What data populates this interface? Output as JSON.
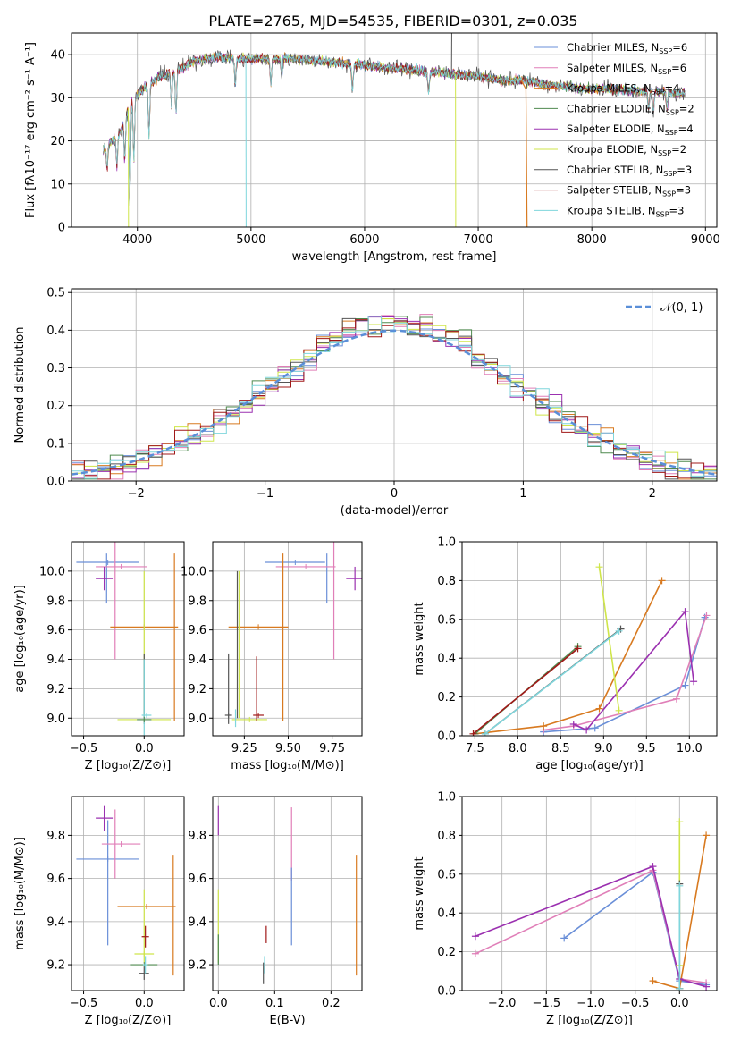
{
  "title": "PLATE=2765, MJD=54535, FIBERID=0301, z=0.035",
  "colors": {
    "c0": "#6a8fd8",
    "c1": "#e07fb8",
    "c2": "#d87a20",
    "c3": "#4f8a4f",
    "c4": "#9b30b0",
    "c5": "#cfe54a",
    "c6": "#555555",
    "c7": "#a01818",
    "c8": "#7fd6dc",
    "normal": "#5a8fd8"
  },
  "chart_data": [
    {
      "id": "spectrum",
      "type": "line",
      "xlabel": "wavelength [Angstrom, rest frame]",
      "ylabel": "Flux [fλ10⁻¹⁷ erg cm⁻² s⁻¹ A⁻¹]",
      "xlim": [
        3420,
        9100
      ],
      "ylim": [
        0,
        45
      ],
      "xticks": [
        "4000",
        "5000",
        "6000",
        "7000",
        "8000",
        "9000"
      ],
      "yticks": [
        "0",
        "10",
        "20",
        "30",
        "40"
      ],
      "legend": [
        {
          "label": "Chabrier MILES, N",
          "sub": "SSP",
          "eq": "=6",
          "color": "c0"
        },
        {
          "label": "Salpeter MILES, N",
          "sub": "SSP",
          "eq": "=6",
          "color": "c1"
        },
        {
          "label": "Kroupa MILES, N",
          "sub": "SSP",
          "eq": "=4",
          "color": "c2"
        },
        {
          "label": "Chabrier ELODIE, N",
          "sub": "SSP",
          "eq": "=2",
          "color": "c3"
        },
        {
          "label": "Salpeter ELODIE, N",
          "sub": "SSP",
          "eq": "=4",
          "color": "c4"
        },
        {
          "label": "Kroupa ELODIE, N",
          "sub": "SSP",
          "eq": "=2",
          "color": "c5"
        },
        {
          "label": "Chabrier STELIB, N",
          "sub": "SSP",
          "eq": "=3",
          "color": "c6"
        },
        {
          "label": "Salpeter STELIB, N",
          "sub": "SSP",
          "eq": "=3",
          "color": "c7"
        },
        {
          "label": "Kroupa STELIB, N",
          "sub": "SSP",
          "eq": "=3",
          "color": "c8"
        }
      ],
      "continuum": [
        [
          3700,
          18
        ],
        [
          3780,
          20
        ],
        [
          3850,
          22
        ],
        [
          3900,
          26
        ],
        [
          3950,
          30
        ],
        [
          4000,
          31
        ],
        [
          4100,
          33
        ],
        [
          4200,
          35
        ],
        [
          4300,
          36
        ],
        [
          4400,
          37
        ],
        [
          4500,
          38.5
        ],
        [
          4700,
          39.5
        ],
        [
          4900,
          39
        ],
        [
          5000,
          39
        ],
        [
          5200,
          39
        ],
        [
          5400,
          39
        ],
        [
          5600,
          38.5
        ],
        [
          5800,
          38
        ],
        [
          6000,
          37.5
        ],
        [
          6200,
          37
        ],
        [
          6400,
          36.5
        ],
        [
          6600,
          36
        ],
        [
          6800,
          35.5
        ],
        [
          7000,
          35
        ],
        [
          7200,
          34
        ],
        [
          7400,
          34
        ],
        [
          7600,
          33
        ],
        [
          7800,
          32.5
        ],
        [
          8000,
          32
        ],
        [
          8200,
          32
        ],
        [
          8400,
          31.5
        ],
        [
          8600,
          31.5
        ],
        [
          8800,
          31
        ]
      ],
      "features": [
        {
          "x": 3734,
          "depth": 5
        },
        {
          "x": 3820,
          "depth": 7
        },
        {
          "x": 3889,
          "depth": 10
        },
        {
          "x": 3934,
          "depth": 22
        },
        {
          "x": 3969,
          "depth": 15
        },
        {
          "x": 4102,
          "depth": 12
        },
        {
          "x": 4300,
          "depth": 8
        },
        {
          "x": 4340,
          "depth": 10
        },
        {
          "x": 4861,
          "depth": 6
        },
        {
          "x": 5175,
          "depth": 6
        },
        {
          "x": 5270,
          "depth": 4
        },
        {
          "x": 5893,
          "depth": 6
        },
        {
          "x": 6563,
          "depth": 5
        },
        {
          "x": 8500,
          "depth": 4
        },
        {
          "x": 8542,
          "depth": 5
        },
        {
          "x": 8662,
          "depth": 4
        }
      ],
      "artifacts": [
        {
          "x": 3920,
          "y": 0,
          "color": "c5"
        },
        {
          "x": 4955,
          "y": 0,
          "color": "c8"
        },
        {
          "x": 6800,
          "y": 0,
          "color": "c5"
        },
        {
          "x": 6765,
          "y": 45,
          "color": "c6"
        }
      ],
      "drop": {
        "x": 7420,
        "from": 34,
        "to": 0,
        "color": "c2"
      }
    },
    {
      "id": "residuals",
      "type": "area",
      "xlabel": "(data-model)/error",
      "ylabel": "Normed distribution",
      "xlim": [
        -2.5,
        2.5
      ],
      "ylim": [
        0,
        0.51
      ],
      "xticks": [
        "−2",
        "−1",
        "0",
        "1",
        "2"
      ],
      "yticks": [
        "0.0",
        "0.1",
        "0.2",
        "0.3",
        "0.4",
        "0.5"
      ],
      "bin_width": 0.1,
      "legend_label": "𝒩(0, 1)",
      "grid": true
    },
    {
      "id": "age-vs-Z",
      "type": "scatter",
      "xlabel": "Z [log₁₀(Z/Z⊙)]",
      "ylabel": "age  [log₁₀(age/yr)]",
      "xlim": [
        -0.6,
        0.33
      ],
      "ylim": [
        8.88,
        10.2
      ],
      "xticks": [
        "−0.5",
        "0.0"
      ],
      "yticks": [
        "9.0",
        "9.2",
        "9.4",
        "9.6",
        "9.8",
        "10.0"
      ],
      "points": [
        {
          "x": -0.3,
          "y": 10.06,
          "xerr": 0.26,
          "yerr": 0.0,
          "color": "c0"
        },
        {
          "x": -0.31,
          "y": 9.95,
          "xerr": 0.0,
          "yerr": 0.17,
          "color": "c0",
          "yonly": true
        },
        {
          "x": -0.19,
          "y": 10.03,
          "xerr": 0.21,
          "yerr": 0.0,
          "color": "c1"
        },
        {
          "x": -0.24,
          "y": 9.9,
          "xerr": 0.0,
          "yerr": 0.5,
          "color": "c1",
          "yonly": true
        },
        {
          "x": -0.33,
          "y": 9.95,
          "xerr": 0.07,
          "yerr": 0.08,
          "color": "c4"
        },
        {
          "x": 0.0,
          "y": 9.62,
          "xerr": 0.28,
          "yerr": 0.0,
          "color": "c2"
        },
        {
          "x": 0.25,
          "y": 9.55,
          "xerr": 0.0,
          "yerr": 0.57,
          "color": "c2",
          "yonly": true
        },
        {
          "x": 0.0,
          "y": 9.5,
          "xerr": 0.0,
          "yerr": 0.5,
          "color": "c5",
          "yonly": true
        },
        {
          "x": 0.0,
          "y": 8.99,
          "xerr": 0.22,
          "yerr": 0.0,
          "color": "c5"
        },
        {
          "x": 0.0,
          "y": 9.2,
          "xerr": 0.0,
          "yerr": 0.24,
          "color": "c6",
          "yonly": true
        },
        {
          "x": 0.0,
          "y": 9.0,
          "xerr": 0.0,
          "yerr": 0.4,
          "color": "c8",
          "yonly": true
        },
        {
          "x": 0.02,
          "y": 9.02,
          "xerr": 0.04,
          "yerr": 0.0,
          "color": "c8"
        },
        {
          "x": 0.0,
          "y": 8.99,
          "xerr": 0.06,
          "yerr": 0.0,
          "color": "c3"
        }
      ]
    },
    {
      "id": "age-vs-mass",
      "type": "scatter",
      "xlabel": "mass [log₁₀(M/M⊙)]",
      "ylabel": "",
      "xlim": [
        9.07,
        9.92
      ],
      "ylim": [
        8.88,
        10.2
      ],
      "xticks": [
        "9.25",
        "9.50",
        "9.75"
      ],
      "yticks": [
        "9.0",
        "9.2",
        "9.4",
        "9.6",
        "9.8",
        "10.0"
      ],
      "points": [
        {
          "x": 9.54,
          "y": 10.06,
          "xerr": 0.17,
          "yerr": 0.0,
          "color": "c0"
        },
        {
          "x": 9.72,
          "y": 9.95,
          "xerr": 0.0,
          "yerr": 0.17,
          "color": "c0",
          "yonly": true
        },
        {
          "x": 9.6,
          "y": 10.03,
          "xerr": 0.17,
          "yerr": 0.0,
          "color": "c1"
        },
        {
          "x": 9.76,
          "y": 9.9,
          "xerr": 0.0,
          "yerr": 0.5,
          "color": "c1",
          "yonly": true
        },
        {
          "x": 9.88,
          "y": 9.95,
          "xerr": 0.05,
          "yerr": 0.08,
          "color": "c4"
        },
        {
          "x": 9.33,
          "y": 9.62,
          "xerr": 0.17,
          "yerr": 0.0,
          "color": "c2"
        },
        {
          "x": 9.47,
          "y": 9.55,
          "xerr": 0.0,
          "yerr": 0.57,
          "color": "c2",
          "yonly": true
        },
        {
          "x": 9.22,
          "y": 9.5,
          "xerr": 0.0,
          "yerr": 0.5,
          "color": "c5",
          "yonly": true
        },
        {
          "x": 9.28,
          "y": 8.99,
          "xerr": 0.1,
          "yerr": 0.0,
          "color": "c5"
        },
        {
          "x": 9.21,
          "y": 9.5,
          "xerr": 0.0,
          "yerr": 0.5,
          "color": "c6",
          "yonly": true
        },
        {
          "x": 9.16,
          "y": 9.2,
          "xerr": 0.0,
          "yerr": 0.24,
          "color": "c6",
          "yonly": true
        },
        {
          "x": 9.16,
          "y": 9.02,
          "xerr": 0.02,
          "yerr": 0.0,
          "color": "c6"
        },
        {
          "x": 9.32,
          "y": 9.2,
          "xerr": 0.0,
          "yerr": 0.22,
          "color": "c7",
          "yonly": true
        },
        {
          "x": 9.33,
          "y": 9.02,
          "xerr": 0.03,
          "yerr": 0.0,
          "color": "c7"
        },
        {
          "x": 9.2,
          "y": 9.0,
          "xerr": 0.0,
          "yerr": 0.06,
          "color": "c8",
          "yonly": true
        }
      ]
    },
    {
      "id": "weight-vs-age",
      "type": "line",
      "xlabel": "age  [log₁₀(age/yr)]",
      "ylabel": "mass weight",
      "xlim": [
        7.35,
        10.32
      ],
      "ylim": [
        0,
        1.0
      ],
      "xticks": [
        "7.5",
        "8.0",
        "8.5",
        "9.0",
        "9.5",
        "10.0"
      ],
      "yticks": [
        "0.0",
        "0.2",
        "0.4",
        "0.6",
        "0.8",
        "1.0"
      ],
      "grid": true,
      "series": [
        {
          "color": "c0",
          "x": [
            8.3,
            8.9,
            9.95,
            10.18
          ],
          "y": [
            0.02,
            0.04,
            0.26,
            0.61
          ]
        },
        {
          "color": "c1",
          "x": [
            8.3,
            8.65,
            9.85,
            10.2
          ],
          "y": [
            0.03,
            0.05,
            0.19,
            0.62
          ]
        },
        {
          "color": "c2",
          "x": [
            7.5,
            8.3,
            8.95,
            9.68
          ],
          "y": [
            0.01,
            0.05,
            0.14,
            0.8
          ]
        },
        {
          "color": "c3",
          "x": [
            7.5,
            8.7
          ],
          "y": [
            0.01,
            0.46
          ]
        },
        {
          "color": "c4",
          "x": [
            8.65,
            8.8,
            9.95,
            10.05
          ],
          "y": [
            0.06,
            0.03,
            0.64,
            0.28
          ]
        },
        {
          "color": "c5",
          "x": [
            8.95,
            9.18
          ],
          "y": [
            0.87,
            0.13
          ]
        },
        {
          "color": "c6",
          "x": [
            7.62,
            9.2
          ],
          "y": [
            0.01,
            0.55
          ]
        },
        {
          "color": "c7",
          "x": [
            7.48,
            8.7
          ],
          "y": [
            0.01,
            0.45
          ]
        },
        {
          "color": "c8",
          "x": [
            7.62,
            9.18
          ],
          "y": [
            0.01,
            0.54
          ]
        }
      ]
    },
    {
      "id": "mass-vs-Z",
      "type": "scatter",
      "xlabel": "Z [log₁₀(Z/Z⊙)]",
      "ylabel": "mass [log₁₀(M/M⊙)]",
      "xlim": [
        -0.6,
        0.33
      ],
      "ylim": [
        9.08,
        9.98
      ],
      "xticks": [
        "−0.5",
        "0.0"
      ],
      "yticks": [
        "9.2",
        "9.4",
        "9.6",
        "9.8"
      ],
      "points": [
        {
          "x": -0.3,
          "y": 9.69,
          "xerr": 0.26,
          "yerr": 0.0,
          "color": "c0"
        },
        {
          "x": -0.3,
          "y": 9.58,
          "xerr": 0.0,
          "yerr": 0.29,
          "color": "c0",
          "yonly": true
        },
        {
          "x": -0.19,
          "y": 9.76,
          "xerr": 0.16,
          "yerr": 0.0,
          "color": "c1"
        },
        {
          "x": -0.24,
          "y": 9.76,
          "xerr": 0.0,
          "yerr": 0.16,
          "color": "c1",
          "yonly": true
        },
        {
          "x": -0.33,
          "y": 9.88,
          "xerr": 0.07,
          "yerr": 0.06,
          "color": "c4"
        },
        {
          "x": 0.02,
          "y": 9.47,
          "xerr": 0.24,
          "yerr": 0.0,
          "color": "c2"
        },
        {
          "x": 0.24,
          "y": 9.43,
          "xerr": 0.0,
          "yerr": 0.28,
          "color": "c2",
          "yonly": true
        },
        {
          "x": 0.0,
          "y": 9.38,
          "xerr": 0.0,
          "yerr": 0.17,
          "color": "c5",
          "yonly": true
        },
        {
          "x": 0.0,
          "y": 9.25,
          "xerr": 0.08,
          "yerr": 0.0,
          "color": "c5"
        },
        {
          "x": 0.0,
          "y": 9.2,
          "xerr": 0.11,
          "yerr": 0.0,
          "color": "c3"
        },
        {
          "x": 0.0,
          "y": 9.16,
          "xerr": 0.04,
          "yerr": 0.03,
          "color": "c6"
        },
        {
          "x": 0.01,
          "y": 9.33,
          "xerr": 0.03,
          "yerr": 0.05,
          "color": "c7"
        },
        {
          "x": 0.01,
          "y": 9.2,
          "xerr": 0.02,
          "yerr": 0.04,
          "color": "c8"
        }
      ]
    },
    {
      "id": "mass-vs-EBV",
      "type": "scatter",
      "xlabel": "E(B-V)",
      "ylabel": "",
      "xlim": [
        -0.01,
        0.255
      ],
      "ylim": [
        9.08,
        9.98
      ],
      "xticks": [
        "0.0",
        "0.1",
        "0.2"
      ],
      "yticks": [
        "9.2",
        "9.4",
        "9.6",
        "9.8"
      ],
      "points": [
        {
          "x": 0.0,
          "y": 9.87,
          "xerr": 0.0,
          "yerr": 0.07,
          "color": "c4",
          "yonly": true
        },
        {
          "x": 0.0,
          "y": 9.38,
          "xerr": 0.0,
          "yerr": 0.17,
          "color": "c5",
          "yonly": true
        },
        {
          "x": 0.0,
          "y": 9.27,
          "xerr": 0.0,
          "yerr": 0.07,
          "color": "c3",
          "yonly": true
        },
        {
          "x": 0.08,
          "y": 9.16,
          "xerr": 0.0,
          "yerr": 0.05,
          "color": "c6",
          "yonly": true
        },
        {
          "x": 0.082,
          "y": 9.2,
          "xerr": 0.0,
          "yerr": 0.04,
          "color": "c8",
          "yonly": true
        },
        {
          "x": 0.085,
          "y": 9.34,
          "xerr": 0.0,
          "yerr": 0.04,
          "color": "c7",
          "yonly": true
        },
        {
          "x": 0.13,
          "y": 9.76,
          "xerr": 0.0,
          "yerr": 0.17,
          "color": "c1",
          "yonly": true
        },
        {
          "x": 0.13,
          "y": 9.47,
          "xerr": 0.0,
          "yerr": 0.18,
          "color": "c0",
          "yonly": true
        },
        {
          "x": 0.245,
          "y": 9.43,
          "xerr": 0.0,
          "yerr": 0.28,
          "color": "c2",
          "yonly": true
        }
      ]
    },
    {
      "id": "weight-vs-Z",
      "type": "line",
      "xlabel": "Z [log₁₀(Z/Z⊙)]",
      "ylabel": "mass weight",
      "xlim": [
        -2.45,
        0.42
      ],
      "ylim": [
        0,
        1.0
      ],
      "xticks": [
        "−2.0",
        "−1.5",
        "−1.0",
        "−0.5",
        "0.0"
      ],
      "yticks": [
        "0.0",
        "0.2",
        "0.4",
        "0.6",
        "0.8",
        "1.0"
      ],
      "grid": true,
      "series": [
        {
          "color": "c0",
          "x": [
            -1.3,
            -0.3,
            0.0,
            0.3
          ],
          "y": [
            0.27,
            0.61,
            0.05,
            0.03
          ]
        },
        {
          "color": "c1",
          "x": [
            -2.3,
            -0.3,
            0.0,
            0.3
          ],
          "y": [
            0.19,
            0.62,
            0.06,
            0.04
          ]
        },
        {
          "color": "c2",
          "x": [
            -0.3,
            0.0,
            0.3
          ],
          "y": [
            0.05,
            0.01,
            0.8
          ]
        },
        {
          "color": "c4",
          "x": [
            -2.3,
            -0.3,
            0.0,
            0.3
          ],
          "y": [
            0.28,
            0.64,
            0.06,
            0.02
          ]
        },
        {
          "color": "c5",
          "x": [
            0.0,
            0.0
          ],
          "y": [
            0.87,
            0.13
          ]
        },
        {
          "color": "c6",
          "x": [
            0.0,
            0.0
          ],
          "y": [
            0.55,
            0.01
          ]
        },
        {
          "color": "c8",
          "x": [
            0.0,
            0.0
          ],
          "y": [
            0.54,
            0.01
          ]
        }
      ]
    }
  ]
}
